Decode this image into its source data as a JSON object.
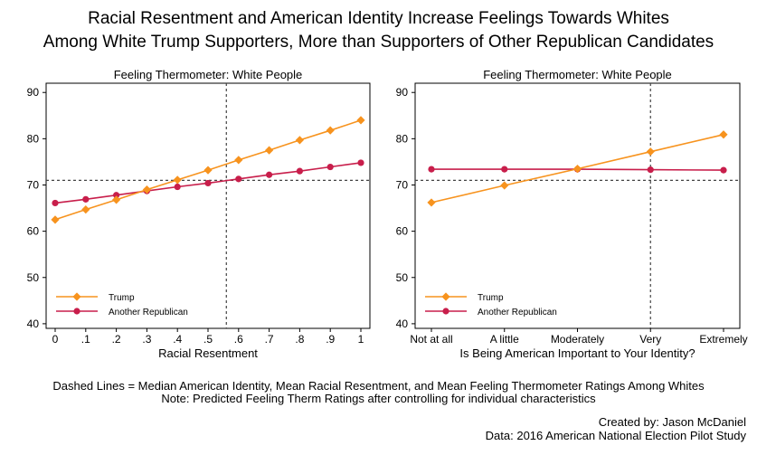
{
  "title": {
    "line1": "Racial Resentment and American Identity Increase Feelings Towards Whites",
    "line2": "Among White Trump Supporters, More than Supporters of Other Republican Candidates"
  },
  "footer": {
    "note1": "Dashed Lines = Median American Identity, Mean Racial Resentment, and Mean Feeling Thermometer Ratings Among Whites",
    "note2": "Note: Predicted Feeling Therm Ratings after controlling for individual characteristics",
    "credit1": "Created by: Jason McDaniel",
    "credit2": "Data: 2016 American National Election Pilot Study"
  },
  "colors": {
    "trump": "#F7931E",
    "republican": "#C81E4B",
    "reference": "#444444"
  },
  "chart_data": [
    {
      "type": "line",
      "title": "Feeling Thermometer: White People",
      "xlabel": "Racial Resentment",
      "ylabel": "",
      "x": [
        0,
        0.1,
        0.2,
        0.3,
        0.4,
        0.5,
        0.6,
        0.7,
        0.8,
        0.9,
        1
      ],
      "xtick_labels": [
        "0",
        ".1",
        ".2",
        ".3",
        ".4",
        ".5",
        ".6",
        ".7",
        ".8",
        ".9",
        "1"
      ],
      "ylim": [
        39,
        92
      ],
      "yticks": [
        40,
        50,
        60,
        70,
        80,
        90
      ],
      "series": [
        {
          "name": "Trump",
          "marker": "diamond",
          "color": "#F7931E",
          "values": [
            62.5,
            64.7,
            66.8,
            69.0,
            71.1,
            73.2,
            75.4,
            77.5,
            79.7,
            81.8,
            84.0
          ]
        },
        {
          "name": "Another Republican",
          "marker": "circle",
          "color": "#C81E4B",
          "values": [
            66.1,
            66.9,
            67.8,
            68.7,
            69.6,
            70.4,
            71.3,
            72.2,
            73.0,
            73.9,
            74.8
          ]
        }
      ],
      "reference_lines": {
        "x": 0.56,
        "y": 71.0
      },
      "legend": "bottom-left",
      "grid": false
    },
    {
      "type": "line",
      "title": "Feeling Thermometer: White People",
      "xlabel": "Is Being American Important to Your Identity?",
      "ylabel": "",
      "categories": [
        "Not at all",
        "A little",
        "Moderately",
        "Very",
        "Extremely"
      ],
      "ylim": [
        39,
        92
      ],
      "yticks": [
        40,
        50,
        60,
        70,
        80,
        90
      ],
      "series": [
        {
          "name": "Trump",
          "marker": "diamond",
          "color": "#F7931E",
          "values": [
            66.2,
            69.9,
            73.5,
            77.2,
            80.9
          ]
        },
        {
          "name": "Another Republican",
          "marker": "circle",
          "color": "#C81E4B",
          "values": [
            73.4,
            73.4,
            73.4,
            73.3,
            73.2
          ]
        }
      ],
      "reference_lines": {
        "x": "Very",
        "y": 71.0
      },
      "legend": "bottom-left",
      "grid": false
    }
  ]
}
